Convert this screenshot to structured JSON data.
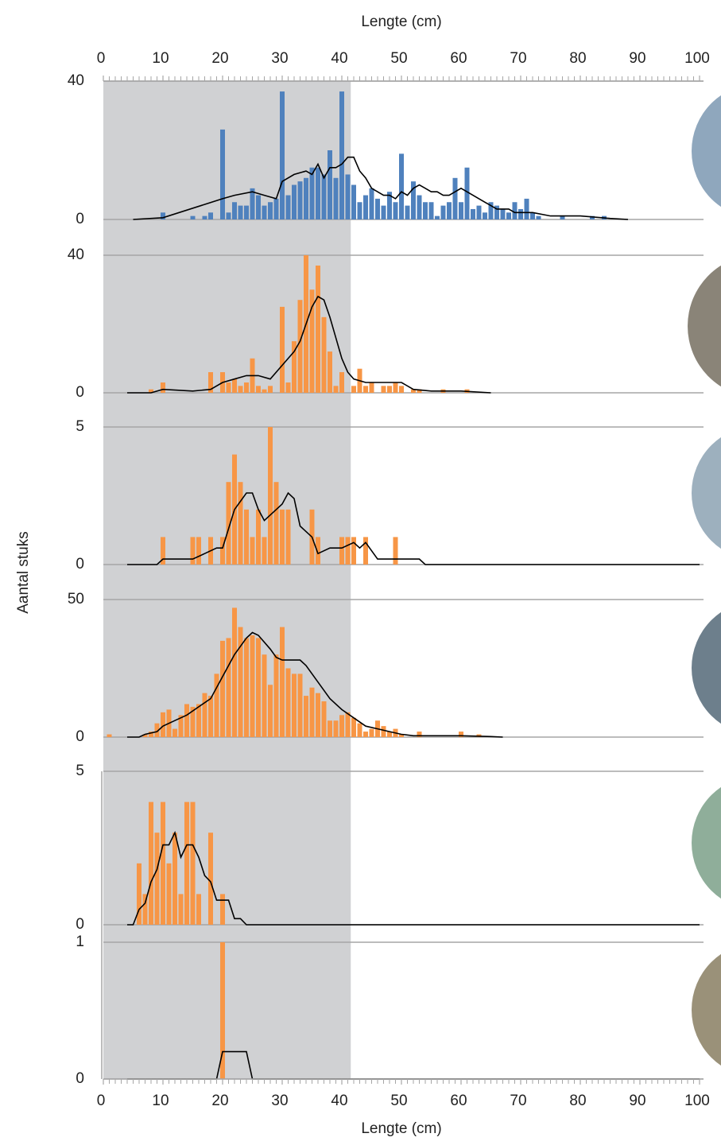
{
  "ylabel": "Aantal stuks",
  "shaded_xrange": [
    0,
    41.5
  ],
  "chart_data": [
    {
      "type": "bar",
      "xaxis": "top",
      "xlabel": "Lengte (cm)",
      "xlim": [
        0,
        100
      ],
      "xticks": [
        0,
        10,
        20,
        30,
        40,
        50,
        60,
        70,
        80,
        90,
        100
      ],
      "minor_ticks": true,
      "ylim": [
        0,
        40
      ],
      "yticks": [
        0,
        40
      ],
      "grid": true,
      "series": [
        {
          "type": "bar",
          "color": "#4f81bd",
          "x": [
            10,
            15,
            17,
            18,
            20,
            21,
            22,
            23,
            24,
            25,
            26,
            27,
            28,
            29,
            30,
            31,
            32,
            33,
            34,
            35,
            36,
            37,
            38,
            39,
            40,
            41,
            42,
            43,
            44,
            45,
            46,
            47,
            48,
            49,
            50,
            51,
            52,
            53,
            54,
            55,
            56,
            57,
            58,
            59,
            60,
            61,
            62,
            63,
            64,
            65,
            66,
            67,
            68,
            69,
            70,
            71,
            72,
            73,
            77,
            82,
            84
          ],
          "values": [
            2,
            1,
            1,
            2,
            26,
            2,
            5,
            4,
            4,
            9,
            7,
            4,
            5,
            6,
            37,
            7,
            10,
            11,
            12,
            15,
            15,
            13,
            20,
            12,
            37,
            13,
            10,
            5,
            7,
            9,
            6,
            4,
            8,
            5,
            19,
            4,
            11,
            7,
            5,
            5,
            1,
            4,
            5,
            12,
            5,
            15,
            3,
            4,
            2,
            5,
            4,
            3,
            2,
            5,
            3,
            6,
            2,
            1,
            1,
            1,
            1
          ]
        },
        {
          "type": "line",
          "color": "#000000",
          "x": [
            5,
            10,
            20,
            22,
            25,
            27,
            29,
            30,
            32,
            34,
            35,
            36,
            37,
            38,
            39,
            40,
            41,
            42,
            43,
            44,
            45,
            46,
            47,
            48,
            49,
            50,
            51,
            52,
            53,
            54,
            55,
            56,
            57,
            58,
            59,
            60,
            61,
            62,
            63,
            64,
            65,
            66,
            67,
            68,
            69,
            70,
            72,
            75,
            80,
            85,
            88
          ],
          "values": [
            0,
            0.5,
            6,
            7,
            8,
            7,
            6,
            11,
            13,
            14,
            13,
            16,
            12,
            15,
            15,
            16,
            18,
            18,
            14,
            12,
            9,
            8,
            7,
            7,
            6,
            8,
            7,
            9,
            10,
            9,
            8,
            8,
            7,
            7,
            8,
            9,
            8,
            7,
            6,
            5,
            4,
            3,
            3,
            3,
            2,
            2,
            2,
            1,
            1,
            0.3,
            0
          ]
        }
      ]
    },
    {
      "type": "bar",
      "xlim": [
        0,
        100
      ],
      "ylim": [
        0,
        40
      ],
      "yticks": [
        0,
        40
      ],
      "grid": true,
      "series": [
        {
          "type": "bar",
          "color": "#f79646",
          "x": [
            8,
            10,
            18,
            20,
            21,
            22,
            23,
            24,
            25,
            26,
            27,
            28,
            30,
            31,
            32,
            33,
            34,
            35,
            36,
            37,
            38,
            39,
            40,
            42,
            43,
            44,
            45,
            47,
            48,
            49,
            50,
            52,
            53,
            57,
            61
          ],
          "values": [
            1,
            3,
            6,
            6,
            3,
            4,
            2,
            3,
            10,
            2,
            1,
            2,
            25,
            3,
            15,
            27,
            40,
            30,
            37,
            22,
            12,
            2,
            6,
            2,
            7,
            2,
            3,
            2,
            2,
            3,
            2,
            1,
            1,
            1,
            1
          ]
        },
        {
          "type": "line",
          "color": "#000000",
          "x": [
            4,
            8,
            10,
            15,
            18,
            20,
            22,
            24,
            26,
            28,
            30,
            32,
            33,
            34,
            35,
            36,
            37,
            38,
            39,
            40,
            41,
            42,
            44,
            46,
            48,
            50,
            52,
            55,
            60,
            65
          ],
          "values": [
            0,
            0,
            1,
            0.5,
            1,
            3,
            4,
            5,
            5,
            4,
            8,
            12,
            15,
            20,
            25,
            28,
            27,
            22,
            16,
            10,
            6,
            4,
            3,
            3,
            3,
            3,
            1,
            0.5,
            0.5,
            0
          ]
        }
      ]
    },
    {
      "type": "bar",
      "xlim": [
        0,
        100
      ],
      "ylim": [
        0,
        5
      ],
      "yticks": [
        0,
        5
      ],
      "grid": true,
      "series": [
        {
          "type": "bar",
          "color": "#f79646",
          "x": [
            10,
            15,
            16,
            18,
            20,
            21,
            22,
            23,
            24,
            25,
            26,
            27,
            28,
            29,
            30,
            31,
            35,
            36,
            40,
            41,
            42,
            44,
            49
          ],
          "values": [
            1,
            1,
            1,
            1,
            1,
            3,
            4,
            3,
            2,
            1,
            2,
            1,
            5,
            3,
            2,
            2,
            2,
            1,
            1,
            1,
            1,
            1,
            1
          ]
        },
        {
          "type": "line",
          "color": "#000000",
          "x": [
            4,
            9,
            10,
            15,
            17,
            19,
            20,
            21,
            22,
            24,
            25,
            26,
            27,
            28,
            30,
            31,
            32,
            33,
            35,
            36,
            38,
            40,
            42,
            43,
            44,
            46,
            50,
            53,
            54,
            100
          ],
          "values": [
            0,
            0,
            0.2,
            0.2,
            0.4,
            0.6,
            0.6,
            1.3,
            2,
            2.6,
            2.6,
            2,
            1.6,
            1.8,
            2.2,
            2.6,
            2.4,
            1.4,
            1,
            0.4,
            0.6,
            0.6,
            0.8,
            0.6,
            0.8,
            0.2,
            0.2,
            0.2,
            0,
            0
          ]
        }
      ]
    },
    {
      "type": "bar",
      "xlim": [
        0,
        100
      ],
      "ylim": [
        0,
        50
      ],
      "yticks": [
        0,
        50
      ],
      "grid": true,
      "series": [
        {
          "type": "bar",
          "color": "#f79646",
          "x": [
            1,
            7,
            8,
            9,
            10,
            11,
            12,
            13,
            14,
            15,
            16,
            17,
            18,
            19,
            20,
            21,
            22,
            23,
            24,
            25,
            26,
            27,
            28,
            29,
            30,
            31,
            32,
            33,
            34,
            35,
            36,
            37,
            38,
            39,
            40,
            41,
            42,
            43,
            44,
            45,
            46,
            47,
            48,
            49,
            50,
            53,
            60,
            63
          ],
          "values": [
            1,
            1,
            2,
            5,
            9,
            10,
            3,
            8,
            12,
            11,
            12,
            16,
            15,
            23,
            35,
            36,
            47,
            40,
            36,
            37,
            36,
            30,
            19,
            30,
            40,
            25,
            23,
            23,
            15,
            18,
            16,
            13,
            6,
            6,
            8,
            9,
            7,
            5,
            2,
            3,
            6,
            4,
            2,
            3,
            1,
            2,
            2,
            1
          ]
        },
        {
          "type": "line",
          "color": "#000000",
          "x": [
            4,
            6,
            7,
            9,
            10,
            12,
            14,
            16,
            18,
            20,
            22,
            24,
            25,
            26,
            28,
            29,
            30,
            32,
            33,
            34,
            36,
            38,
            40,
            42,
            44,
            46,
            48,
            50,
            52,
            55,
            60,
            65,
            67
          ],
          "values": [
            0,
            0,
            1,
            2,
            4,
            6,
            8,
            11,
            14,
            22,
            30,
            36,
            38,
            37,
            32,
            29,
            28,
            28,
            28,
            26,
            20,
            14,
            10,
            7,
            4,
            3,
            2,
            1,
            0.5,
            0.5,
            0.5,
            0.2,
            0
          ]
        }
      ]
    },
    {
      "type": "bar",
      "xlim": [
        0,
        100
      ],
      "ylim": [
        0,
        5
      ],
      "yticks": [
        0,
        5
      ],
      "grid": true,
      "series": [
        {
          "type": "bar",
          "color": "#f79646",
          "x": [
            6,
            7,
            8,
            9,
            10,
            11,
            12,
            13,
            14,
            15,
            16,
            18,
            20
          ],
          "values": [
            2,
            1,
            4,
            3,
            4,
            2,
            3,
            1,
            4,
            4,
            1,
            3,
            1
          ]
        },
        {
          "type": "line",
          "color": "#000000",
          "x": [
            4,
            5,
            6,
            7,
            8,
            9,
            10,
            11,
            12,
            13,
            14,
            15,
            16,
            17,
            18,
            19,
            20,
            21,
            22,
            23,
            24,
            100
          ],
          "values": [
            0,
            0,
            0.5,
            0.7,
            1.4,
            1.8,
            2.6,
            2.6,
            3,
            2.2,
            2.6,
            2.6,
            2.2,
            1.6,
            1.4,
            0.8,
            0.8,
            0.8,
            0.2,
            0.2,
            0,
            0
          ]
        }
      ]
    },
    {
      "type": "bar",
      "xaxis": "bottom",
      "xlabel": "Lengte (cm)",
      "xlim": [
        0,
        100
      ],
      "xticks": [
        0,
        10,
        20,
        30,
        40,
        50,
        60,
        70,
        80,
        90,
        100
      ],
      "minor_ticks": true,
      "ylim": [
        0,
        1
      ],
      "yticks": [
        0,
        1
      ],
      "grid": true,
      "series": [
        {
          "type": "bar",
          "color": "#f79646",
          "x": [
            20
          ],
          "values": [
            1
          ]
        },
        {
          "type": "line",
          "color": "#000000",
          "x": [
            4,
            19,
            20,
            24,
            25,
            100
          ],
          "values": [
            0,
            0,
            0.2,
            0.2,
            0,
            0
          ]
        }
      ]
    }
  ]
}
